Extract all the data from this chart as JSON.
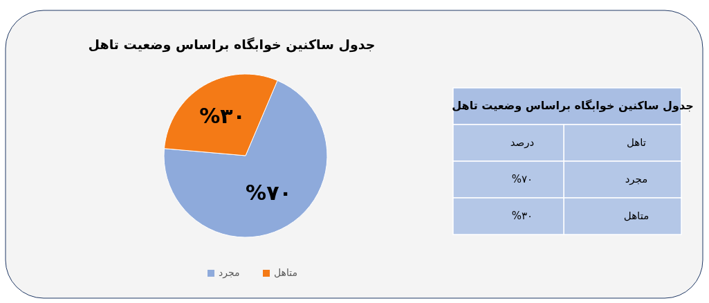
{
  "chart_data": [
    {
      "type": "pie",
      "title": "جدول ساکنین خوابگاه براساس وضعیت تاهل",
      "categories": [
        "مجرد",
        "متاهل"
      ],
      "values": [
        70,
        30
      ],
      "colors": [
        "#8eaadb",
        "#f47a16"
      ],
      "value_labels": [
        "%۷۰",
        "%۳۰"
      ],
      "legend": "bottom"
    },
    {
      "type": "other",
      "title": "جدول ساکنین خوابگاه براساس وضعیت تاهل",
      "annotations": [
        "تاهل",
        "درصد",
        "مجرد",
        "%۷۰",
        "متاهل",
        "%۳۰"
      ]
    }
  ]
}
